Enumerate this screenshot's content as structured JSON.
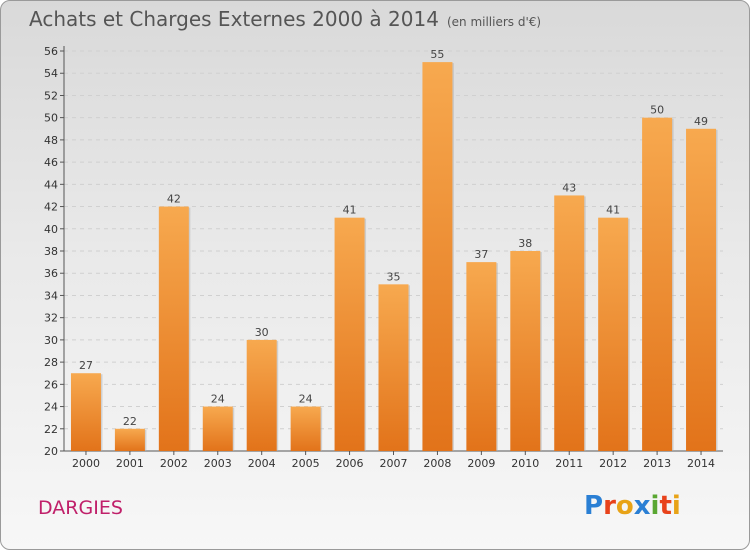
{
  "header": {
    "title": "Achats et Charges Externes 2000 à 2014",
    "subtitle": "(en milliers d'€)"
  },
  "footer": {
    "place": "DARGIES",
    "logo": "Proxiti"
  },
  "colors": {
    "bar_light": "#f7a94f",
    "bar_dark": "#e2731a",
    "logo": [
      "#2a7fd4",
      "#e8421b",
      "#e8a317",
      "#2a7fd4",
      "#5aa732",
      "#e8421b",
      "#e8a317"
    ]
  },
  "chart_data": {
    "type": "bar",
    "title": "Achats et Charges Externes 2000 à 2014",
    "subtitle": "(en milliers d'€)",
    "categories": [
      "2000",
      "2001",
      "2002",
      "2003",
      "2004",
      "2005",
      "2006",
      "2007",
      "2008",
      "2009",
      "2010",
      "2011",
      "2012",
      "2013",
      "2014"
    ],
    "values": [
      27,
      22,
      42,
      24,
      30,
      24,
      41,
      35,
      55,
      37,
      38,
      43,
      41,
      50,
      49
    ],
    "ylim": [
      20,
      56
    ],
    "yticks": [
      20,
      22,
      24,
      26,
      28,
      30,
      32,
      34,
      36,
      38,
      40,
      42,
      44,
      46,
      48,
      50,
      52,
      54,
      56
    ],
    "grid": true
  }
}
